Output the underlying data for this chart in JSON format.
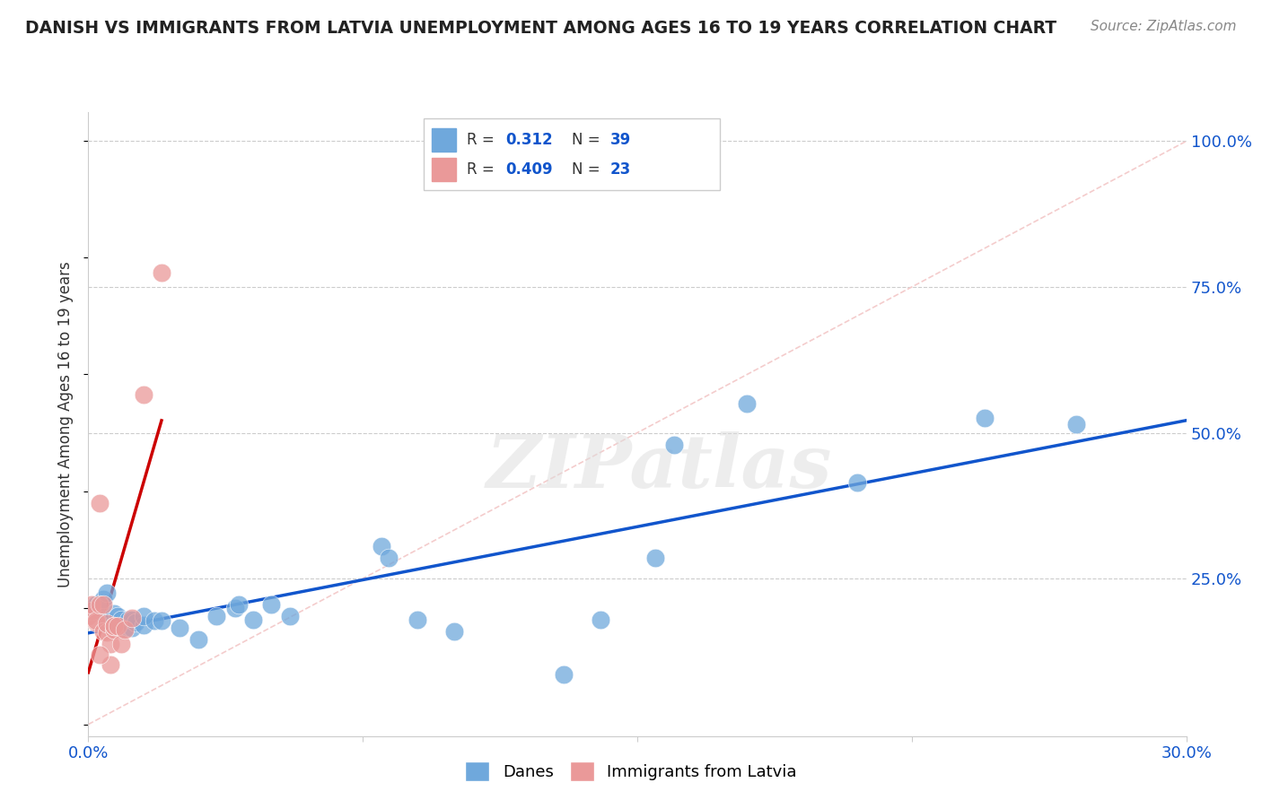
{
  "title": "DANISH VS IMMIGRANTS FROM LATVIA UNEMPLOYMENT AMONG AGES 16 TO 19 YEARS CORRELATION CHART",
  "source": "Source: ZipAtlas.com",
  "ylabel": "Unemployment Among Ages 16 to 19 years",
  "xlim": [
    0.0,
    0.3
  ],
  "ylim": [
    -0.02,
    1.05
  ],
  "ytick_labels": [
    "100.0%",
    "75.0%",
    "50.0%",
    "25.0%"
  ],
  "ytick_positions": [
    1.0,
    0.75,
    0.5,
    0.25
  ],
  "danes_R": "0.312",
  "danes_N": "39",
  "latvia_R": "0.409",
  "latvia_N": "23",
  "danes_color": "#6fa8dc",
  "latvia_color": "#ea9999",
  "danes_line_color": "#1155cc",
  "latvia_line_color": "#cc0000",
  "diagonal_color": "#f4cccc",
  "legend_label_danes": "Danes",
  "legend_label_latvia": "Immigrants from Latvia",
  "danes_x": [
    0.001,
    0.002,
    0.003,
    0.004,
    0.005,
    0.005,
    0.006,
    0.007,
    0.008,
    0.009,
    0.01,
    0.011,
    0.012,
    0.012,
    0.013,
    0.015,
    0.015,
    0.018,
    0.02,
    0.025,
    0.03,
    0.035,
    0.04,
    0.041,
    0.045,
    0.05,
    0.055,
    0.08,
    0.082,
    0.09,
    0.1,
    0.13,
    0.14,
    0.155,
    0.16,
    0.18,
    0.21,
    0.245,
    0.27
  ],
  "danes_y": [
    0.195,
    0.205,
    0.195,
    0.215,
    0.175,
    0.225,
    0.175,
    0.19,
    0.185,
    0.18,
    0.165,
    0.18,
    0.165,
    0.18,
    0.175,
    0.17,
    0.185,
    0.178,
    0.178,
    0.165,
    0.145,
    0.185,
    0.2,
    0.205,
    0.18,
    0.205,
    0.185,
    0.305,
    0.285,
    0.18,
    0.16,
    0.085,
    0.18,
    0.285,
    0.48,
    0.55,
    0.415,
    0.525,
    0.515
  ],
  "latvia_x": [
    0.0,
    0.001,
    0.001,
    0.002,
    0.002,
    0.003,
    0.003,
    0.004,
    0.004,
    0.005,
    0.005,
    0.006,
    0.006,
    0.007,
    0.007,
    0.007,
    0.008,
    0.009,
    0.01,
    0.012,
    0.015,
    0.02,
    0.003
  ],
  "latvia_y": [
    0.185,
    0.195,
    0.205,
    0.175,
    0.178,
    0.205,
    0.38,
    0.205,
    0.16,
    0.158,
    0.173,
    0.138,
    0.103,
    0.163,
    0.168,
    0.168,
    0.168,
    0.138,
    0.163,
    0.183,
    0.565,
    0.775,
    0.12
  ],
  "watermark_text": "ZIPatlas",
  "background_color": "#ffffff",
  "grid_color": "#cccccc"
}
